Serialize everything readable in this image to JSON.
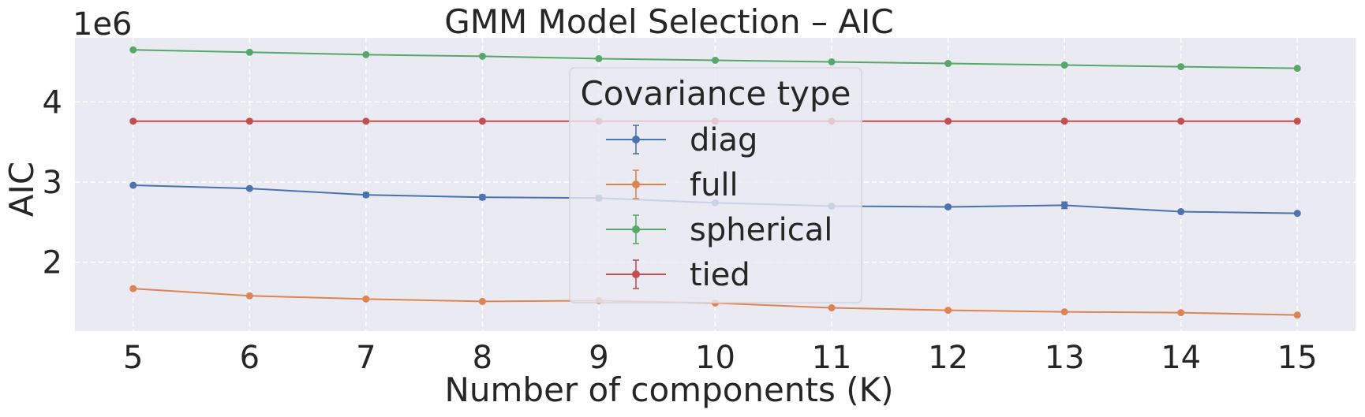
{
  "chart_data": {
    "type": "line",
    "title": "GMM Model Selection – AIC",
    "xlabel": "Number of components (K)",
    "ylabel": "AIC",
    "offset_label": "1e6",
    "x": [
      5,
      6,
      7,
      8,
      9,
      10,
      11,
      12,
      13,
      14,
      15
    ],
    "xlim": [
      4.5,
      15.5
    ],
    "ylim": [
      1.14,
      4.8
    ],
    "xticks": [
      5,
      6,
      7,
      8,
      9,
      10,
      11,
      12,
      13,
      14,
      15
    ],
    "yticks": [
      2,
      3,
      4
    ],
    "grid": true,
    "legend": {
      "title": "Covariance type",
      "placement": "center"
    },
    "series": [
      {
        "name": "diag",
        "color": "#4c72b0",
        "values": [
          2.96,
          2.92,
          2.84,
          2.81,
          2.8,
          2.74,
          2.7,
          2.69,
          2.71,
          2.63,
          2.61
        ],
        "errors": [
          0.01,
          0.01,
          0.025,
          0.03,
          0.03,
          0.01,
          0.01,
          0.02,
          0.04,
          0.01,
          0.01
        ]
      },
      {
        "name": "full",
        "color": "#dd8452",
        "values": [
          1.67,
          1.58,
          1.54,
          1.51,
          1.52,
          1.49,
          1.43,
          1.4,
          1.38,
          1.37,
          1.34
        ],
        "errors": [
          0.005,
          0.005,
          0.005,
          0.01,
          0.01,
          0.01,
          0.015,
          0.01,
          0.01,
          0.01,
          0.01
        ]
      },
      {
        "name": "spherical",
        "color": "#55a868",
        "values": [
          4.65,
          4.62,
          4.59,
          4.57,
          4.54,
          4.52,
          4.5,
          4.48,
          4.46,
          4.44,
          4.42
        ],
        "errors": [
          0.003,
          0.003,
          0.003,
          0.003,
          0.003,
          0.003,
          0.003,
          0.003,
          0.003,
          0.003,
          0.003
        ]
      },
      {
        "name": "tied",
        "color": "#c44e52",
        "values": [
          3.76,
          3.76,
          3.76,
          3.76,
          3.76,
          3.76,
          3.76,
          3.76,
          3.76,
          3.76,
          3.76
        ],
        "errors": [
          0.002,
          0.002,
          0.002,
          0.002,
          0.002,
          0.002,
          0.002,
          0.002,
          0.002,
          0.002,
          0.002
        ]
      }
    ]
  }
}
